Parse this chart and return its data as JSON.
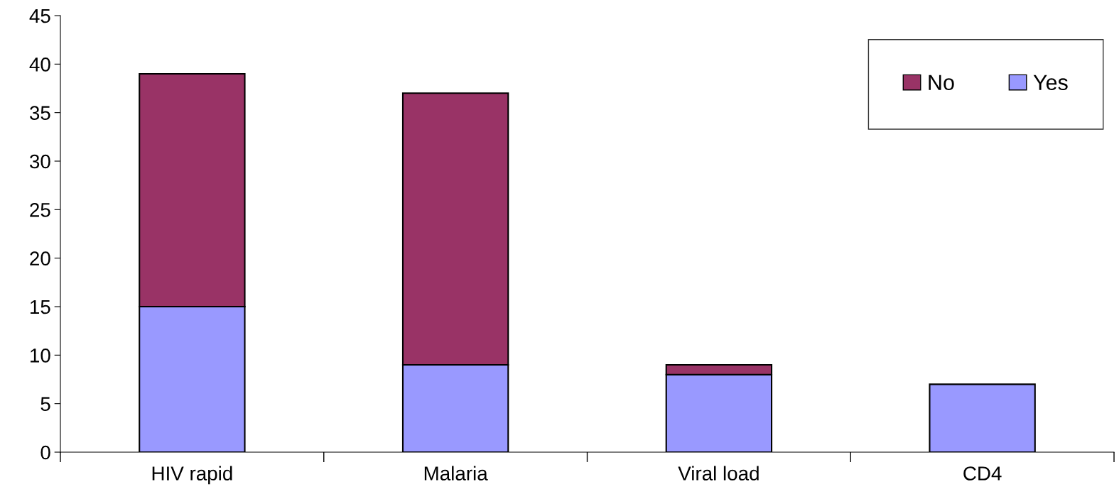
{
  "chart_data": {
    "type": "bar",
    "stacked": true,
    "categories": [
      "HIV rapid",
      "Malaria",
      "Viral load",
      "CD4"
    ],
    "series": [
      {
        "name": "Yes",
        "color": "#9999ff",
        "values": [
          15,
          9,
          8,
          7
        ]
      },
      {
        "name": "No",
        "color": "#993366",
        "values": [
          24,
          28,
          1,
          0
        ]
      }
    ],
    "ylim": [
      0,
      45
    ],
    "yticks": [
      0,
      5,
      10,
      15,
      20,
      25,
      30,
      35,
      40,
      45
    ],
    "grid": false,
    "legend": "top right"
  }
}
